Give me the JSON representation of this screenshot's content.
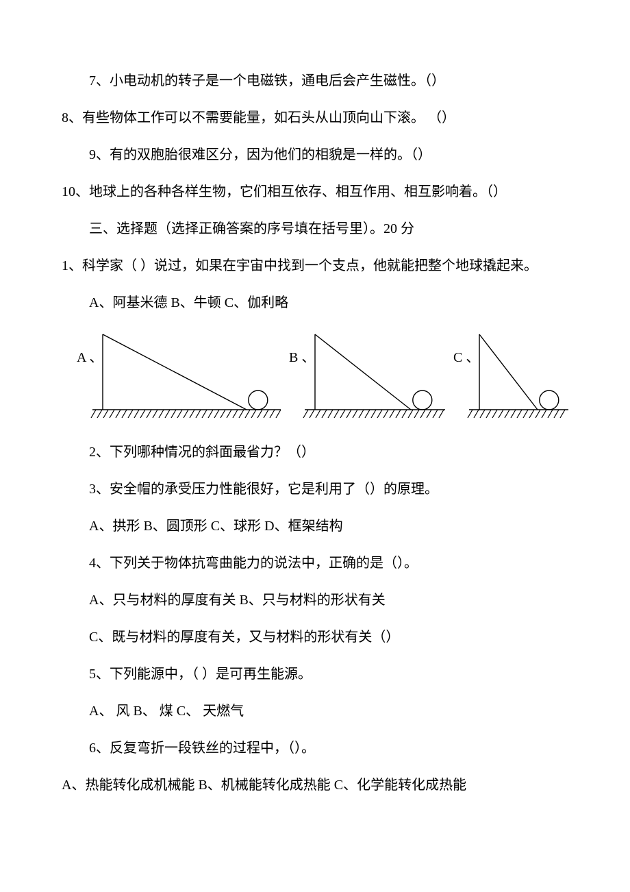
{
  "judgement": {
    "q7": "7、小电动机的转子是一个电磁铁，通电后会产生磁性。（）",
    "q8": "8、有些物体工作可以不需要能量，如石头从山顶向山下滚。 （）",
    "q9": "9、有的双胞胎很难区分，因为他们的相貌是一样的。（）",
    "q10": "10、地球上的各种各样生物，它们相互依存、相互作用、相互影响着。（）"
  },
  "section3_title": "三、选择题（选择正确答案的序号填在括号里）。20 分",
  "choice": {
    "q1": "1、科学家（  ）说过，如果在宇宙中找到一个支点，他就能把整个地球撬起来。",
    "q1_options": "A、阿基米德      B、牛顿      C、伽利略",
    "q2": "2、下列哪种情况的斜面最省力？（）",
    "q3": "3、安全帽的承受压力性能很好，它是利用了（）的原理。",
    "q3_options": "A、拱形 B、圆顶形 C、球形 D、框架结构",
    "q4": "4、下列关于物体抗弯曲能力的说法中，正确的是（）。",
    "q4_optA": "A、只与材料的厚度有关 B、只与材料的形状有关",
    "q4_optC": "C、既与材料的厚度有关，又与材料的形状有关（）",
    "q5": "5、下列能源中，（  ）是可再生能源。",
    "q5_options": "A、   风       B、   煤       C、   天燃气",
    "q6": "6、反复弯折一段铁丝的过程中，（）。",
    "q6_options": "A、热能转化成机械能 B、机械能转化成热能 C、化学能转化成热能"
  },
  "diagram": {
    "labelA": "A 、",
    "labelB": "B 、",
    "labelC": "C 、",
    "stroke": "#000000",
    "hatch_stroke": "#000000",
    "stroke_width": 1.4,
    "circle_r": 14,
    "font_size": 20
  }
}
